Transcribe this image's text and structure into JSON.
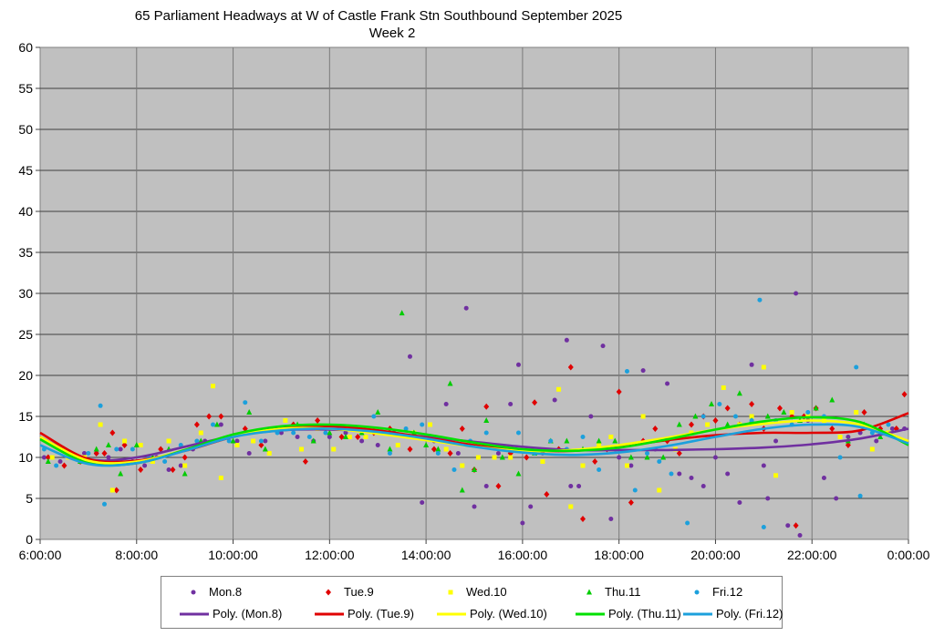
{
  "chart_data": {
    "type": "scatter",
    "title": "65 Parliament Headways at W of Castle Frank Stn Southbound September 2025",
    "subtitle": "Week 2",
    "xlabel": "",
    "ylabel": "",
    "xlim": [
      "6:00:00",
      "0:00:00"
    ],
    "x_tick_labels": [
      "6:00:00",
      "8:00:00",
      "10:00:00",
      "12:00:00",
      "14:00:00",
      "16:00:00",
      "18:00:00",
      "20:00:00",
      "22:00:00",
      "0:00:00"
    ],
    "ylim": [
      0,
      60
    ],
    "y_tick_labels": [
      "0",
      "5",
      "10",
      "15",
      "20",
      "25",
      "30",
      "35",
      "40",
      "45",
      "50",
      "55",
      "60"
    ],
    "grid": true,
    "legend_position": "bottom",
    "plot_background": "#c0c0c0",
    "series": [
      {
        "name": "Mon.8",
        "color": "#7030a0",
        "marker": "circle",
        "x": [
          "6:05",
          "6:25",
          "6:40",
          "6:55",
          "7:10",
          "7:25",
          "7:40",
          "7:55",
          "8:10",
          "8:25",
          "8:40",
          "8:55",
          "9:10",
          "9:25",
          "9:45",
          "10:05",
          "10:20",
          "10:40",
          "11:00",
          "11:20",
          "11:40",
          "12:00",
          "12:20",
          "12:40",
          "13:00",
          "13:20",
          "13:40",
          "13:55",
          "14:10",
          "14:25",
          "14:40",
          "14:50",
          "15:00",
          "15:15",
          "15:30",
          "15:45",
          "15:55",
          "16:00",
          "16:10",
          "16:25",
          "16:40",
          "16:55",
          "17:00",
          "17:10",
          "17:25",
          "17:40",
          "17:50",
          "18:00",
          "18:15",
          "18:30",
          "18:45",
          "19:00",
          "19:15",
          "19:30",
          "19:45",
          "20:00",
          "20:15",
          "20:30",
          "20:45",
          "21:00",
          "21:05",
          "21:15",
          "21:30",
          "21:40",
          "21:45",
          "21:55",
          "22:15",
          "22:30",
          "22:45",
          "23:00",
          "23:20",
          "23:40",
          "23:55"
        ],
        "y": [
          10,
          9.5,
          10,
          10.5,
          10.5,
          10,
          11,
          9.5,
          9,
          10,
          8.5,
          9,
          11,
          12,
          14,
          12,
          10.5,
          12,
          13,
          12.5,
          12,
          12.5,
          13,
          12,
          11.5,
          13,
          22.3,
          4.5,
          12,
          16.5,
          10.5,
          28.2,
          4,
          6.5,
          10.5,
          16.5,
          21.3,
          2,
          4,
          10.5,
          17,
          24.3,
          6.5,
          6.5,
          15,
          23.6,
          2.5,
          10,
          9,
          20.6,
          11,
          19,
          8,
          7.5,
          6.5,
          10,
          8,
          4.5,
          21.3,
          9,
          5,
          12,
          1.7,
          30,
          0.5,
          14.5,
          7.5,
          5,
          12.5,
          13,
          12,
          13.5,
          13.5
        ]
      },
      {
        "name": "Tue.9",
        "color": "#e00000",
        "marker": "diamond",
        "x": [
          "6:10",
          "6:30",
          "6:50",
          "7:10",
          "7:20",
          "7:30",
          "7:35",
          "7:45",
          "8:05",
          "8:15",
          "8:30",
          "8:45",
          "9:00",
          "9:15",
          "9:30",
          "9:45",
          "10:15",
          "10:35",
          "10:55",
          "11:15",
          "11:30",
          "11:45",
          "12:15",
          "12:35",
          "12:55",
          "13:15",
          "13:40",
          "14:10",
          "14:30",
          "14:45",
          "15:00",
          "15:15",
          "15:30",
          "15:45",
          "16:05",
          "16:15",
          "16:30",
          "16:45",
          "17:00",
          "17:15",
          "17:30",
          "17:45",
          "18:00",
          "18:15",
          "18:30",
          "18:45",
          "19:00",
          "19:15",
          "19:30",
          "19:45",
          "20:00",
          "20:15",
          "20:30",
          "20:45",
          "21:00",
          "21:20",
          "21:35",
          "21:40",
          "21:50",
          "22:05",
          "22:25",
          "22:45",
          "23:05",
          "23:25",
          "23:45",
          "23:55"
        ],
        "y": [
          10,
          9,
          9.5,
          10.5,
          10.5,
          13,
          6,
          11.5,
          8.5,
          10,
          11,
          8.5,
          10,
          14,
          15,
          15,
          13.5,
          11.5,
          13.5,
          14,
          9.5,
          14.5,
          12.5,
          12.5,
          13,
          13.5,
          11,
          11,
          10.5,
          13.5,
          8.5,
          16.2,
          6.5,
          10.5,
          10,
          16.7,
          5.5,
          11,
          21,
          2.5,
          9.5,
          11,
          18,
          4.5,
          12,
          13.5,
          12,
          10.5,
          14,
          15,
          14.5,
          16,
          14,
          16.5,
          13.5,
          16,
          15,
          1.7,
          15,
          16,
          13.5,
          11.5,
          15.5,
          13.5,
          13.5,
          17.7
        ]
      },
      {
        "name": "Wed.10",
        "color": "#ffff00",
        "marker": "square",
        "x": [
          "6:15",
          "6:35",
          "6:55",
          "7:15",
          "7:30",
          "7:45",
          "8:05",
          "8:20",
          "8:40",
          "9:00",
          "9:20",
          "9:35",
          "9:45",
          "10:05",
          "10:25",
          "10:45",
          "11:05",
          "11:25",
          "11:45",
          "12:05",
          "12:25",
          "12:45",
          "13:05",
          "13:25",
          "13:45",
          "14:05",
          "14:25",
          "14:45",
          "15:05",
          "15:25",
          "15:45",
          "16:05",
          "16:25",
          "16:45",
          "17:00",
          "17:15",
          "17:35",
          "17:50",
          "18:10",
          "18:30",
          "18:50",
          "19:10",
          "19:30",
          "19:50",
          "20:10",
          "20:30",
          "20:45",
          "21:00",
          "21:15",
          "21:35",
          "21:55",
          "22:15",
          "22:35",
          "22:55",
          "23:15",
          "23:35"
        ],
        "y": [
          10,
          10,
          10,
          14,
          6,
          12,
          11.5,
          9.5,
          12,
          9,
          13,
          18.7,
          7.5,
          11.5,
          12,
          10.5,
          14.5,
          11,
          13.5,
          11,
          12.5,
          12.5,
          13,
          11.5,
          13,
          14,
          11,
          9,
          10,
          10,
          10,
          11,
          9.5,
          18.3,
          4,
          9,
          11.5,
          12.5,
          9,
          15,
          6,
          11,
          13,
          14,
          18.5,
          14,
          15,
          21,
          7.8,
          15.5,
          15,
          14.5,
          12.5,
          15.5,
          11,
          13
        ]
      },
      {
        "name": "Thu.11",
        "color": "#00cc00",
        "marker": "triangle",
        "x": [
          "6:10",
          "6:30",
          "6:50",
          "7:10",
          "7:25",
          "7:40",
          "8:00",
          "8:20",
          "8:40",
          "9:00",
          "9:20",
          "9:40",
          "10:00",
          "10:20",
          "10:40",
          "11:00",
          "11:20",
          "11:40",
          "12:00",
          "12:20",
          "12:40",
          "13:00",
          "13:15",
          "13:30",
          "13:45",
          "14:00",
          "14:15",
          "14:30",
          "14:45",
          "15:00",
          "15:15",
          "15:35",
          "15:55",
          "16:15",
          "16:35",
          "16:55",
          "17:15",
          "17:35",
          "17:55",
          "18:15",
          "18:35",
          "18:55",
          "19:15",
          "19:35",
          "19:55",
          "20:15",
          "20:30",
          "20:45",
          "21:05",
          "21:25",
          "21:45",
          "22:05",
          "22:25",
          "22:45",
          "23:05",
          "23:25"
        ],
        "y": [
          9.5,
          11,
          9.5,
          11,
          11.5,
          8,
          11.5,
          10,
          11,
          8,
          12,
          14,
          12,
          15.5,
          11,
          13.5,
          14,
          12,
          13,
          12.5,
          13,
          15.5,
          11,
          27.6,
          13,
          11.5,
          11,
          19,
          6,
          8.5,
          14.5,
          10,
          8,
          10.5,
          12,
          12,
          11,
          12,
          12,
          10,
          10,
          10,
          14,
          15,
          16.5,
          14,
          17.8,
          14.5,
          15,
          15.5,
          14.5,
          16,
          17,
          12,
          14,
          12.5
        ]
      },
      {
        "name": "Fri.12",
        "color": "#1ca0dc",
        "marker": "circle",
        "x": [
          "6:05",
          "6:20",
          "6:40",
          "7:00",
          "7:15",
          "7:20",
          "7:35",
          "7:55",
          "8:15",
          "8:35",
          "8:55",
          "9:15",
          "9:35",
          "9:55",
          "10:15",
          "10:35",
          "10:55",
          "11:15",
          "11:35",
          "11:55",
          "12:15",
          "12:35",
          "12:55",
          "13:15",
          "13:35",
          "13:55",
          "14:15",
          "14:35",
          "14:55",
          "15:15",
          "15:35",
          "15:55",
          "16:15",
          "16:35",
          "16:55",
          "17:15",
          "17:35",
          "17:55",
          "18:10",
          "18:20",
          "18:35",
          "18:50",
          "19:05",
          "19:25",
          "19:45",
          "20:05",
          "20:25",
          "20:45",
          "20:55",
          "21:00",
          "21:15",
          "21:35",
          "21:55",
          "22:15",
          "22:35",
          "22:55",
          "23:00",
          "23:15",
          "23:35"
        ],
        "y": [
          11,
          9,
          10,
          10.5,
          16.3,
          4.3,
          11,
          11,
          10,
          9.5,
          11.5,
          12,
          14,
          12,
          16.7,
          12,
          13,
          13,
          12.5,
          13,
          13.5,
          13.5,
          15,
          10.5,
          13.5,
          14,
          10.5,
          8.5,
          12,
          13,
          11,
          13,
          10.5,
          12,
          11,
          12.5,
          8.5,
          11,
          20.5,
          6,
          10.5,
          9.5,
          8,
          2,
          15,
          16.5,
          15,
          14.5,
          29.2,
          1.5,
          14.5,
          14,
          15.5,
          15,
          10,
          21,
          5.3,
          13,
          14
        ]
      }
    ],
    "trendlines": [
      {
        "name": "Poly. (Mon.8)",
        "color": "#7030a0",
        "x": [
          "6:00",
          "7:00",
          "8:00",
          "9:00",
          "10:00",
          "11:00",
          "12:00",
          "13:00",
          "14:00",
          "15:00",
          "16:00",
          "17:00",
          "18:00",
          "19:00",
          "20:00",
          "21:00",
          "22:00",
          "23:00",
          "0:00"
        ],
        "y": [
          12.5,
          9.8,
          10,
          11.3,
          12.6,
          13.3,
          13.4,
          13.1,
          12.5,
          11.9,
          11.3,
          10.9,
          10.9,
          10.9,
          11,
          11.2,
          11.6,
          12.3,
          13.5
        ]
      },
      {
        "name": "Poly. (Tue.9)",
        "color": "#e00000",
        "x": [
          "6:00",
          "7:00",
          "8:00",
          "9:00",
          "10:00",
          "11:00",
          "12:00",
          "13:00",
          "14:00",
          "15:00",
          "16:00",
          "17:00",
          "18:00",
          "19:00",
          "20:00",
          "21:00",
          "22:00",
          "23:00",
          "0:00"
        ],
        "y": [
          13,
          9.8,
          9.6,
          10.8,
          12.5,
          13.6,
          13.8,
          13.3,
          12.4,
          11.5,
          10.9,
          10.8,
          11.3,
          12.1,
          12.7,
          13,
          13,
          13.3,
          15.4
        ]
      },
      {
        "name": "Poly. (Wed.10)",
        "color": "#ffff00",
        "x": [
          "6:00",
          "7:00",
          "8:00",
          "9:00",
          "10:00",
          "11:00",
          "12:00",
          "13:00",
          "14:00",
          "15:00",
          "16:00",
          "17:00",
          "18:00",
          "19:00",
          "20:00",
          "21:00",
          "22:00",
          "23:00",
          "0:00"
        ],
        "y": [
          12.5,
          9.6,
          9.5,
          10.9,
          12.6,
          13.5,
          13.5,
          12.9,
          12.1,
          11.3,
          10.8,
          10.9,
          11.5,
          12.4,
          13.4,
          14.1,
          14.5,
          14,
          12
        ]
      },
      {
        "name": "Poly. (Thu.11)",
        "color": "#00e000",
        "x": [
          "6:00",
          "7:00",
          "8:00",
          "9:00",
          "10:00",
          "11:00",
          "12:00",
          "13:00",
          "14:00",
          "15:00",
          "16:00",
          "17:00",
          "18:00",
          "19:00",
          "20:00",
          "21:00",
          "22:00",
          "23:00",
          "0:00"
        ],
        "y": [
          12.2,
          9.3,
          9.3,
          10.9,
          12.8,
          13.8,
          14,
          13.6,
          12.8,
          11.8,
          11,
          10.8,
          11.2,
          12.2,
          13.4,
          14.4,
          14.9,
          14.3,
          11.5
        ]
      },
      {
        "name": "Poly. (Fri.12)",
        "color": "#1ca0dc",
        "x": [
          "6:00",
          "7:00",
          "8:00",
          "9:00",
          "10:00",
          "11:00",
          "12:00",
          "13:00",
          "14:00",
          "15:00",
          "16:00",
          "17:00",
          "18:00",
          "19:00",
          "20:00",
          "21:00",
          "22:00",
          "23:00",
          "0:00"
        ],
        "y": [
          11.5,
          9.2,
          9.3,
          10.8,
          12.5,
          13.3,
          13.5,
          13.1,
          12.3,
          11.3,
          10.6,
          10.3,
          10.6,
          11.4,
          12.5,
          13.5,
          14,
          13.7,
          11.7
        ]
      }
    ]
  }
}
